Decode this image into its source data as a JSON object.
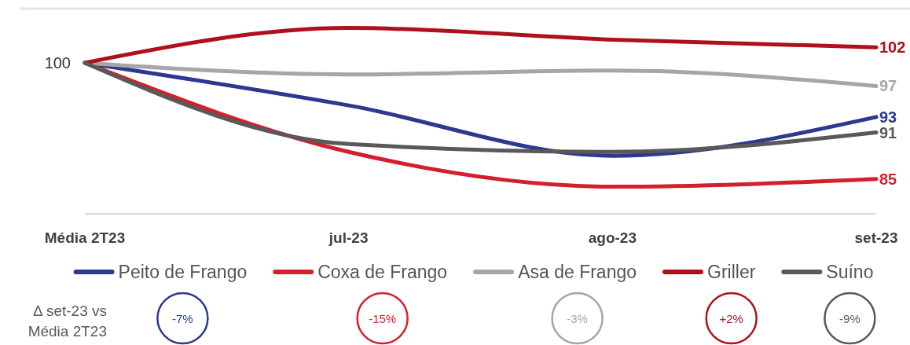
{
  "chart_data": {
    "type": "line",
    "categories": [
      "Média 2T23",
      "jul-23",
      "ago-23",
      "set-23"
    ],
    "series": [
      {
        "name": "Peito de Frango",
        "color": "#2b3990",
        "values": [
          100,
          94.5,
          88,
          93
        ],
        "value_labels": [
          "100",
          null,
          null,
          "93"
        ]
      },
      {
        "name": "Coxa de Frango",
        "color": "#d4202c",
        "values": [
          100,
          88.5,
          84,
          85
        ],
        "value_labels": [
          null,
          null,
          null,
          "85"
        ]
      },
      {
        "name": "Asa de Frango",
        "color": "#a6a6a6",
        "values": [
          100,
          98.5,
          99,
          97
        ],
        "value_labels": [
          null,
          null,
          null,
          "97"
        ]
      },
      {
        "name": "Griller",
        "color": "#ae111b",
        "values": [
          100,
          104.5,
          103,
          102
        ],
        "value_labels": [
          null,
          null,
          null,
          "102"
        ]
      },
      {
        "name": "Suíno",
        "color": "#595959",
        "values": [
          100,
          89.5,
          88.5,
          91
        ],
        "value_labels": [
          null,
          null,
          null,
          "91"
        ]
      }
    ],
    "ylim": [
      80.5,
      107
    ],
    "tick_labels": "x",
    "legend": "bottom",
    "annotations": [
      "Δ set-23 vs\nMédia 2T23",
      "-7%",
      "-15%",
      "-3%",
      "+2%",
      "-9%"
    ]
  }
}
